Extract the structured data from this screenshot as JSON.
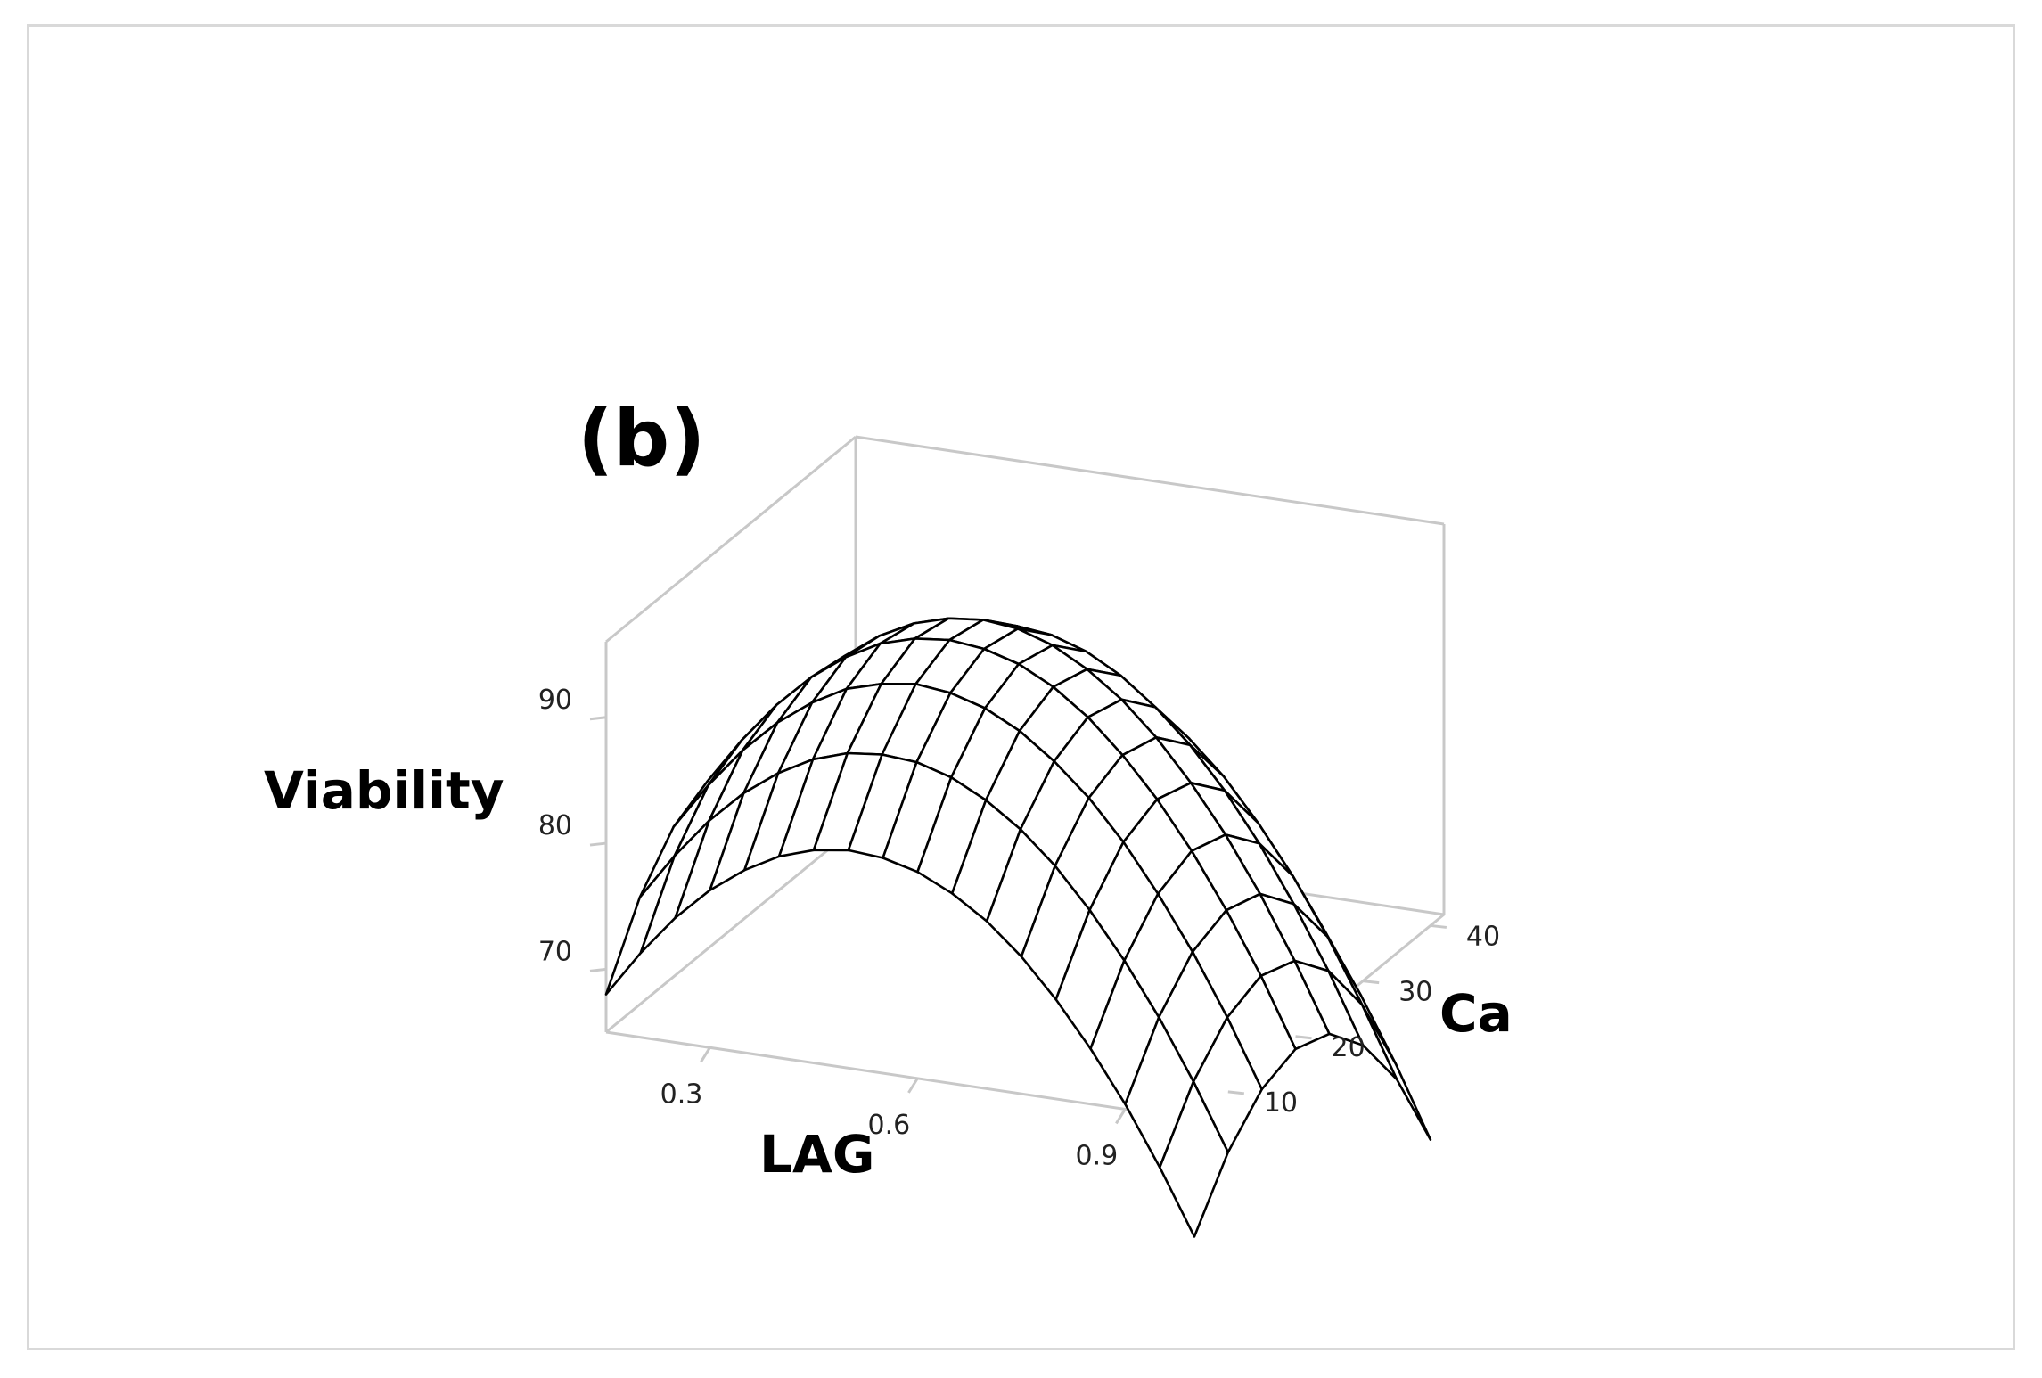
{
  "chart_data": {
    "type": "surface",
    "title": "(b)",
    "xlabel": "LAG",
    "ylabel": "Ca",
    "zlabel": "Viability",
    "x_ticks": [
      "0.3",
      "0.6",
      "0.9"
    ],
    "y_ticks": [
      "10",
      "20",
      "30",
      "40"
    ],
    "z_ticks": [
      "70",
      "80",
      "90"
    ],
    "xlim": [
      0.15,
      1.0
    ],
    "ylim": [
      5,
      42
    ],
    "zlim": [
      65,
      96
    ],
    "grid_x": [
      0.15,
      0.2,
      0.25,
      0.3,
      0.35,
      0.4,
      0.45,
      0.5,
      0.55,
      0.6,
      0.65,
      0.7,
      0.75,
      0.8,
      0.85,
      0.9,
      0.95,
      1.0
    ],
    "grid_y": [
      5,
      10,
      15,
      20,
      25,
      30,
      35,
      40
    ],
    "viability": [
      [
        68.0,
        71.7,
        74.9,
        77.5,
        79.5,
        81.0,
        81.9,
        82.3,
        82.1,
        81.4,
        80.1,
        78.3,
        75.9,
        72.9,
        69.4,
        65.4,
        60.8,
        55.7
      ],
      [
        73.5,
        77.2,
        80.4,
        83.0,
        85.0,
        86.5,
        87.4,
        87.7,
        87.5,
        86.7,
        85.3,
        83.4,
        80.9,
        77.8,
        74.2,
        70.1,
        65.4,
        60.2
      ],
      [
        76.9,
        80.6,
        83.8,
        86.4,
        88.4,
        89.9,
        90.7,
        91.1,
        90.8,
        90.0,
        88.6,
        86.6,
        84.1,
        81.0,
        77.3,
        73.1,
        68.3,
        63.0
      ],
      [
        78.3,
        82.0,
        85.2,
        87.8,
        89.8,
        91.3,
        92.1,
        92.4,
        92.1,
        91.3,
        89.9,
        87.9,
        85.3,
        82.2,
        78.5,
        74.2,
        69.4,
        64.0
      ],
      [
        77.8,
        81.5,
        84.7,
        87.3,
        89.3,
        90.7,
        91.5,
        91.8,
        91.5,
        90.6,
        89.1,
        87.1,
        84.5,
        81.3,
        77.6,
        73.3,
        68.4,
        63.0
      ],
      [
        75.2,
        78.9,
        82.1,
        84.7,
        86.7,
        88.1,
        88.9,
        89.1,
        88.8,
        87.9,
        86.4,
        84.3,
        81.7,
        78.5,
        74.7,
        70.3,
        65.4,
        59.9
      ],
      [
        70.8,
        74.4,
        77.6,
        80.2,
        82.2,
        83.6,
        84.3,
        84.5,
        84.2,
        83.3,
        81.7,
        79.6,
        77.0,
        73.7,
        69.9,
        65.5,
        60.5,
        55.0
      ],
      [
        64.3,
        67.9,
        71.1,
        73.7,
        75.6,
        77.0,
        77.7,
        77.9,
        77.5,
        76.6,
        75.0,
        72.9,
        70.2,
        66.9,
        63.1,
        58.6,
        53.6,
        48.0
      ]
    ]
  }
}
